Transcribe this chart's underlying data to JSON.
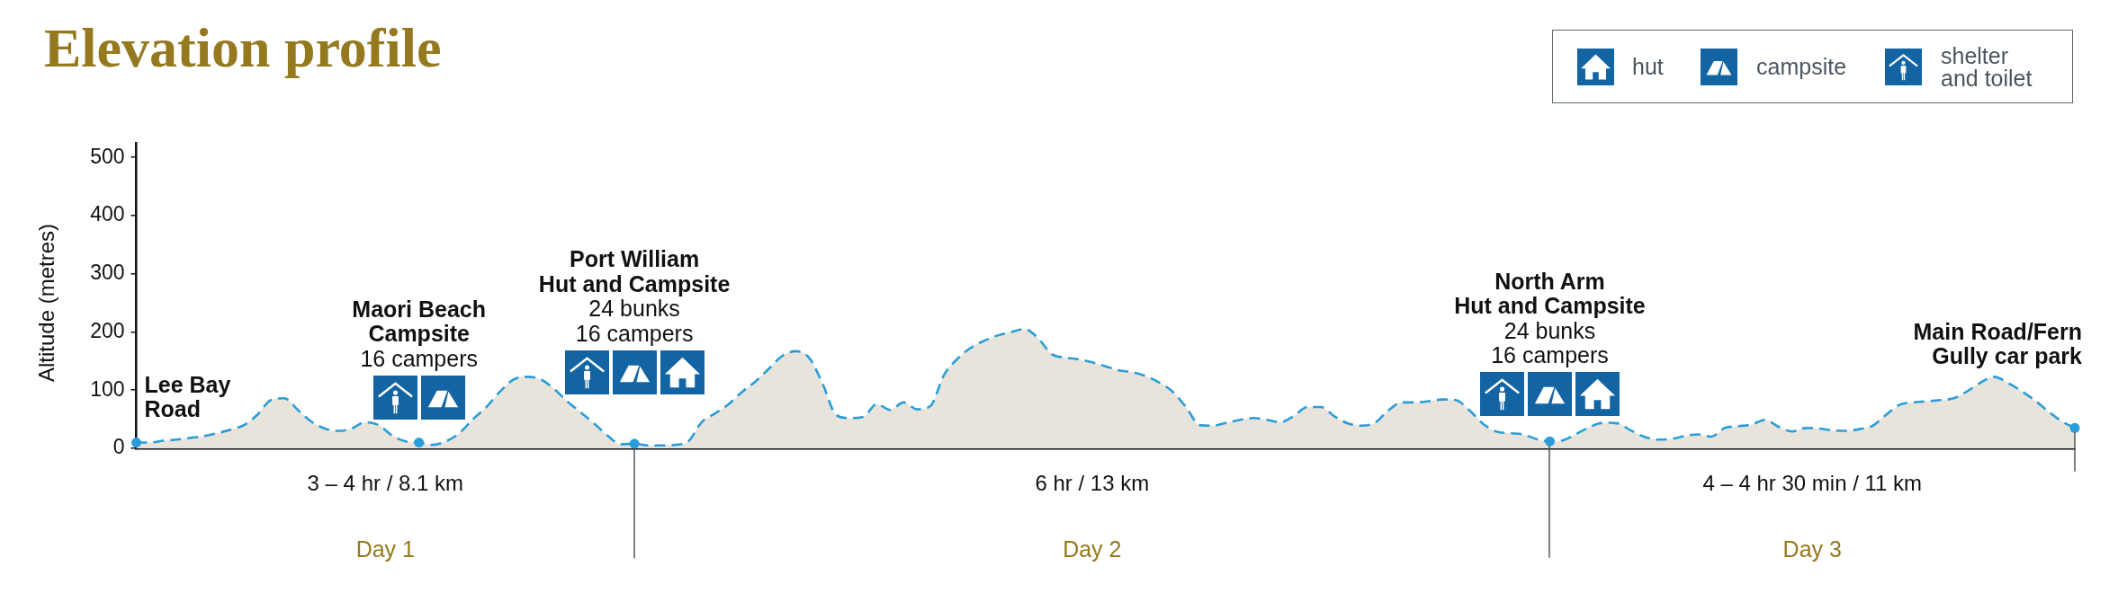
{
  "chart_data": {
    "type": "area",
    "title": "Elevation profile",
    "ylabel": "Altitude (metres)",
    "categories": [
      null,
      null,
      null,
      null,
      null,
      null,
      null,
      null,
      null,
      null,
      null,
      null,
      null,
      null,
      null,
      null,
      null,
      null,
      null,
      null,
      null,
      null,
      null,
      null,
      null,
      null,
      null,
      null,
      null,
      null,
      null,
      null,
      null,
      null,
      null,
      null,
      null,
      null,
      null,
      null,
      null,
      null,
      null,
      null,
      null,
      null,
      null,
      null,
      null,
      null,
      null,
      null,
      null,
      null,
      null,
      null,
      null,
      null,
      null,
      null,
      null,
      null,
      null,
      null,
      null,
      null,
      null,
      null,
      null,
      null,
      null,
      null,
      null,
      null,
      null,
      null,
      null,
      null,
      null,
      null,
      null,
      null,
      null,
      null,
      null,
      null,
      null,
      null,
      null,
      null,
      null,
      null,
      null,
      null,
      null,
      null,
      null,
      null,
      null,
      null,
      null,
      null,
      null,
      null,
      null,
      null,
      null,
      null,
      null,
      null,
      null,
      null,
      null,
      null,
      null,
      null,
      null,
      null,
      null,
      null,
      null,
      null,
      null,
      null,
      null,
      null,
      null,
      null,
      null,
      null,
      null,
      null,
      null,
      null,
      null,
      null,
      null,
      null,
      null,
      null,
      null,
      null,
      null,
      null,
      null
    ],
    "series": [
      {
        "type": "area",
        "color": "#e9e4db",
        "values": [
          10,
          10,
          13,
          15,
          18,
          21,
          26,
          32,
          40,
          58,
          83,
          86,
          66,
          46,
          34,
          30,
          34,
          45,
          40,
          22,
          12,
          10,
          6,
          12,
          26,
          50,
          71,
          97,
          118,
          123,
          119,
          103,
          81,
          62,
          43,
          22,
          7,
          8,
          5,
          5,
          6,
          12,
          45,
          60,
          76,
          97,
          115,
          137,
          159,
          167,
          155,
          110,
          57,
          52,
          54,
          76,
          66,
          79,
          67,
          73,
          126,
          154,
          173,
          185,
          194,
          200,
          205,
          189,
          162,
          156,
          153,
          148,
          141,
          134,
          131,
          124,
          113,
          97,
          70,
          40,
          39,
          44,
          49,
          52,
          49,
          45,
          56,
          71,
          71,
          55,
          43,
          39,
          44,
          65,
          79,
          79,
          81,
          84,
          83,
          66,
          43,
          29,
          26,
          24,
          16,
          12,
          14,
          25,
          37,
          44,
          43,
          31,
          20,
          15,
          16,
          21,
          24,
          20,
          35,
          38,
          41,
          49,
          37,
          29,
          35,
          34,
          31,
          30,
          33,
          39,
          58,
          75,
          79,
          81,
          83,
          86,
          98,
          113,
          123,
          113,
          99,
          83,
          64,
          47,
          35
        ]
      },
      {
        "type": "scatter",
        "color": "#2a9dd8",
        "marker": "circle",
        "values": [
          10,
          null,
          null,
          null,
          null,
          null,
          null,
          null,
          null,
          null,
          null,
          null,
          null,
          null,
          null,
          null,
          null,
          null,
          null,
          null,
          null,
          10,
          null,
          null,
          null,
          null,
          null,
          null,
          null,
          null,
          null,
          null,
          null,
          null,
          null,
          null,
          null,
          8,
          null,
          null,
          null,
          null,
          null,
          null,
          null,
          null,
          null,
          null,
          null,
          null,
          null,
          null,
          null,
          null,
          null,
          null,
          null,
          null,
          null,
          null,
          null,
          null,
          null,
          null,
          null,
          null,
          null,
          null,
          null,
          null,
          null,
          null,
          null,
          null,
          null,
          null,
          null,
          null,
          null,
          null,
          null,
          null,
          null,
          null,
          null,
          null,
          null,
          null,
          null,
          null,
          null,
          null,
          null,
          null,
          null,
          null,
          null,
          null,
          null,
          null,
          null,
          null,
          null,
          null,
          null,
          12,
          null,
          null,
          null,
          null,
          null,
          null,
          null,
          null,
          null,
          null,
          null,
          null,
          null,
          null,
          null,
          null,
          null,
          null,
          null,
          null,
          null,
          null,
          null,
          null,
          null,
          null,
          null,
          null,
          null,
          null,
          null,
          null,
          null,
          null,
          null,
          null,
          null,
          null,
          35
        ]
      }
    ],
    "ylim": [
      0,
      525
    ],
    "yticks": [
      0,
      100,
      200,
      300,
      400,
      500
    ],
    "grid": false,
    "tick_labels": "y",
    "line_style": "dashed",
    "annotations": [
      "Lee Bay\nRoad",
      "Maori Beach\nCampsite",
      "16 campers",
      "Port William\nHut and Campsite",
      "24 bunks\n16 campers",
      "North Arm\nHut and Campsite",
      "24 bunks\n16 campers",
      "Main Road/Fern\nGully car park",
      "3 – 4 hr / 8.1 km",
      "6 hr / 13 km",
      "4 – 4 hr 30 min / 11 km",
      "Day 1",
      "Day 2",
      "Day 3",
      "hut",
      "campsite",
      "shelter\nand toilet"
    ]
  }
}
